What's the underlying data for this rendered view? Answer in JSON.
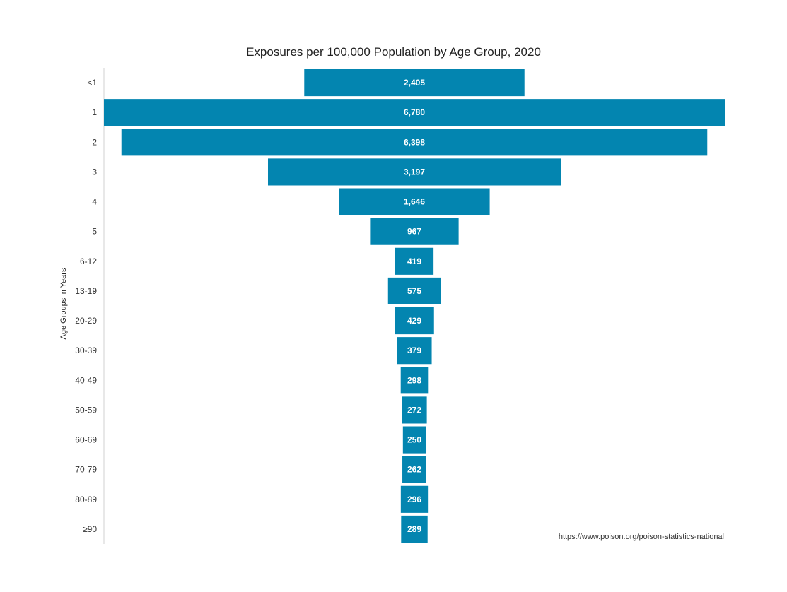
{
  "chart_data": {
    "type": "bar",
    "orientation": "horizontal-centered",
    "title": "Exposures per 100,000 Population by Age Group, 2020",
    "ylabel": "Age Groups in Years",
    "categories": [
      "<1",
      "1",
      "2",
      "3",
      "4",
      "5",
      "6-12",
      "13-19",
      "20-29",
      "30-39",
      "40-49",
      "50-59",
      "60-69",
      "70-79",
      "80-89",
      "≥90"
    ],
    "values": [
      2405,
      6780,
      6398,
      3197,
      1646,
      967,
      419,
      575,
      429,
      379,
      298,
      272,
      250,
      262,
      296,
      289
    ],
    "value_labels": [
      "2,405",
      "6,780",
      "6,398",
      "3,197",
      "1,646",
      "967",
      "419",
      "575",
      "429",
      "379",
      "298",
      "272",
      "250",
      "262",
      "296",
      "289"
    ],
    "bar_color": "#0385b0",
    "label_color": "#ffffff",
    "grid": false,
    "legend": "none"
  },
  "source": "https://www.poison.org/poison-statistics-national"
}
